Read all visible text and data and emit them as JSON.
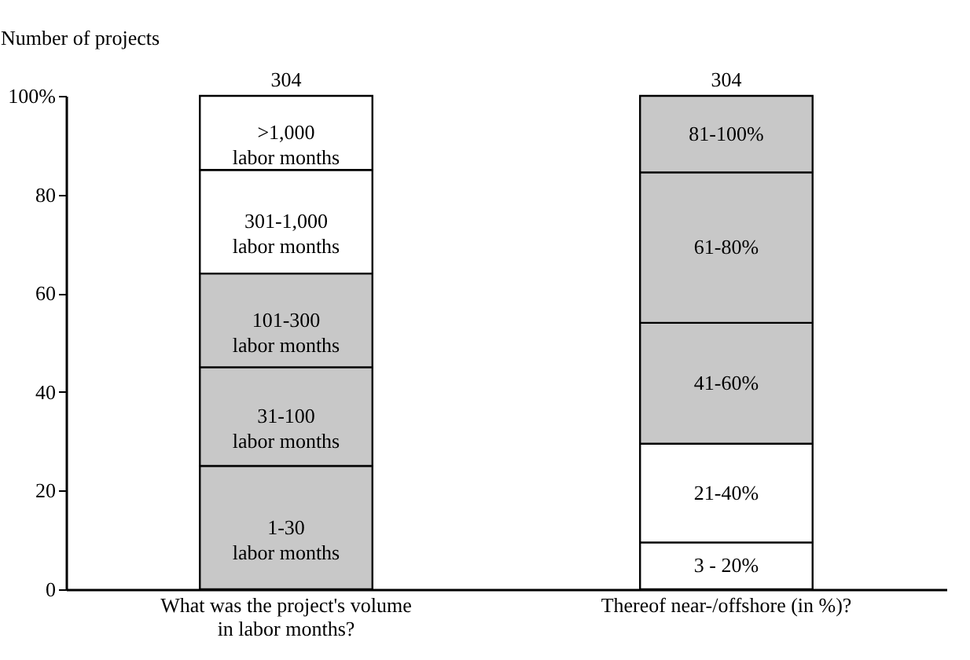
{
  "chart_data": {
    "type": "bar",
    "stacked": true,
    "ylabel": "Number of projects",
    "categories": [
      "What was the project's volume in labor months?",
      "Thereof near-/offshore (in %)?"
    ],
    "series": [
      {
        "name": "1-30 labor months",
        "color": "#c8c8c8",
        "values": [
          25,
          null
        ]
      },
      {
        "name": "31-100 labor months",
        "color": "#c8c8c8",
        "values": [
          20,
          null
        ]
      },
      {
        "name": "101-300 labor months",
        "color": "#c8c8c8",
        "values": [
          19,
          null
        ]
      },
      {
        "name": "301-1,000 labor months",
        "color": "#ffffff",
        "values": [
          21,
          null
        ]
      },
      {
        "name": ">1,000 labor months",
        "color": "#ffffff",
        "values": [
          15,
          null
        ]
      },
      {
        "name": "3 - 20%",
        "color": "#ffffff",
        "values": [
          null,
          9.5
        ]
      },
      {
        "name": "21-40%",
        "color": "#ffffff",
        "values": [
          null,
          20
        ]
      },
      {
        "name": "41-60%",
        "color": "#c8c8c8",
        "values": [
          null,
          24.5
        ]
      },
      {
        "name": "61-80%",
        "color": "#c8c8c8",
        "values": [
          null,
          30.5
        ]
      },
      {
        "name": "81-100%",
        "color": "#c8c8c8",
        "values": [
          null,
          15.5
        ]
      }
    ],
    "annotations": [
      {
        "text": "304",
        "x": "What was the project's volume in labor months?",
        "y": 100
      },
      {
        "text": "304",
        "x": "Thereof near-/offshore (in %)?",
        "y": 100
      }
    ],
    "ylim": [
      0,
      100
    ],
    "yticks": [
      0,
      20,
      40,
      60,
      80,
      {
        "value": 100,
        "label": "100%"
      }
    ],
    "grid": false,
    "legend": false
  }
}
